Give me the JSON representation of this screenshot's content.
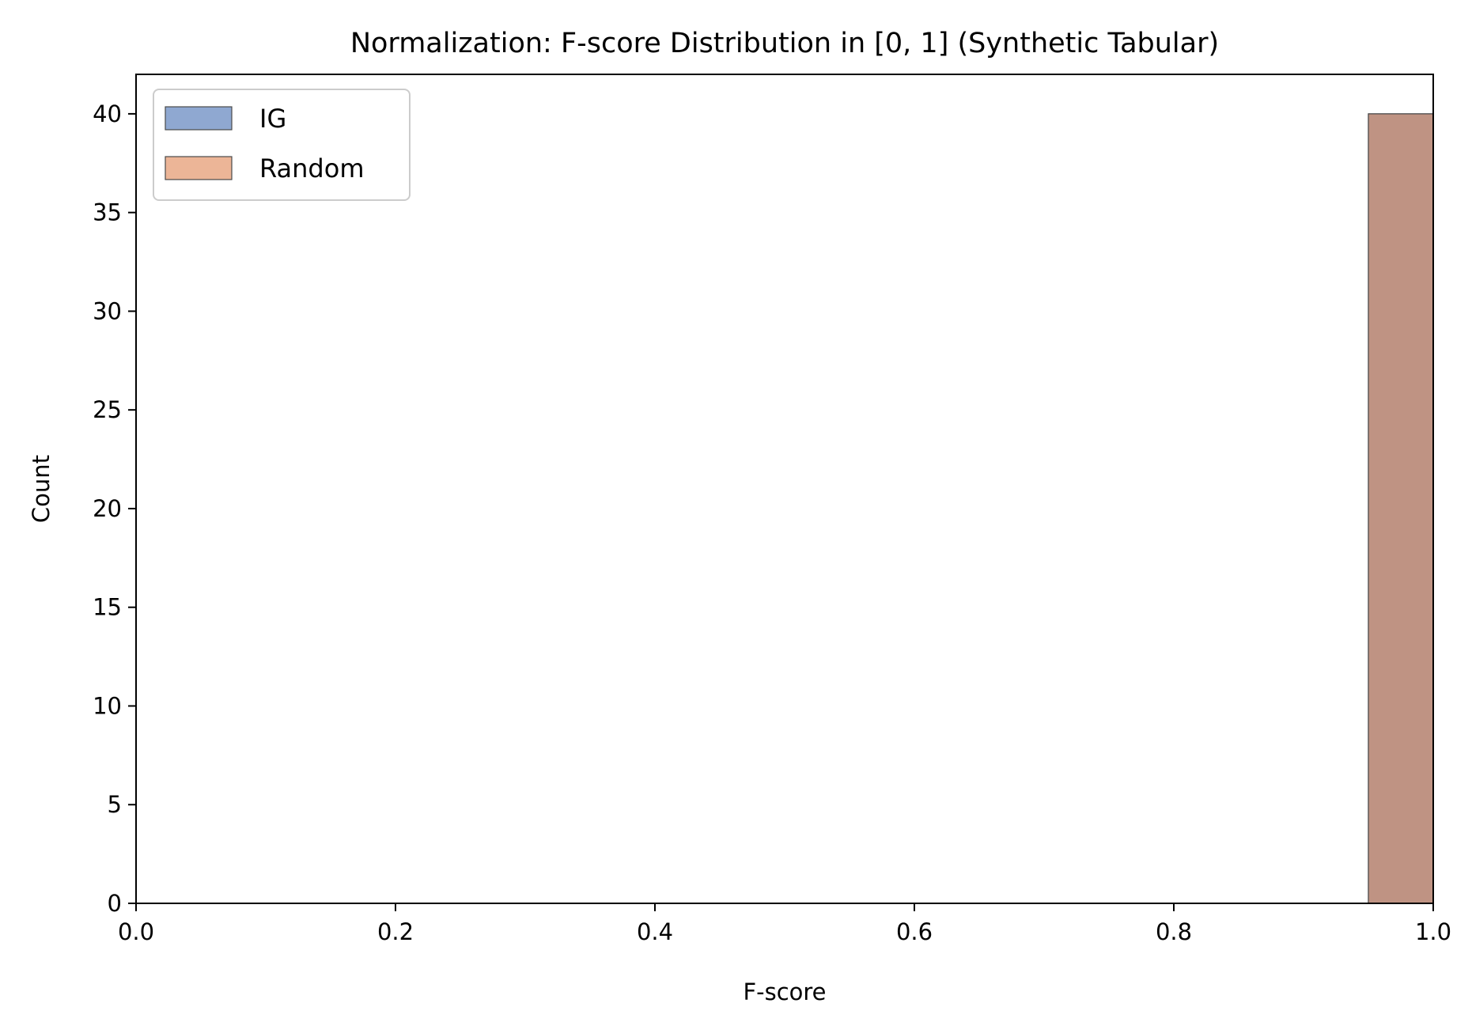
{
  "chart_data": {
    "type": "histogram",
    "title": "Normalization: F-score Distribution in [0, 1] (Synthetic Tabular)",
    "xlabel": "F-score",
    "ylabel": "Count",
    "xlim": [
      0,
      1
    ],
    "ylim": [
      0,
      42
    ],
    "xticks": [
      {
        "value": 0.0,
        "label": "0.0"
      },
      {
        "value": 0.2,
        "label": "0.2"
      },
      {
        "value": 0.4,
        "label": "0.4"
      },
      {
        "value": 0.6,
        "label": "0.6"
      },
      {
        "value": 0.8,
        "label": "0.8"
      },
      {
        "value": 1.0,
        "label": "1.0"
      }
    ],
    "yticks": [
      {
        "value": 0,
        "label": "0"
      },
      {
        "value": 5,
        "label": "5"
      },
      {
        "value": 10,
        "label": "10"
      },
      {
        "value": 15,
        "label": "15"
      },
      {
        "value": 20,
        "label": "20"
      },
      {
        "value": 25,
        "label": "25"
      },
      {
        "value": 30,
        "label": "30"
      },
      {
        "value": 35,
        "label": "35"
      },
      {
        "value": 40,
        "label": "40"
      }
    ],
    "grid": false,
    "legend": {
      "placement": "upper-left"
    },
    "overlap_color": "#bf9383",
    "series": [
      {
        "name": "IG",
        "color": "#8fa8d1",
        "bins": [
          {
            "x0": 0.95,
            "x1": 1.0,
            "count": 40
          }
        ]
      },
      {
        "name": "Random",
        "color": "#ecb597",
        "bins": [
          {
            "x0": 0.95,
            "x1": 1.0,
            "count": 40
          }
        ]
      }
    ]
  }
}
